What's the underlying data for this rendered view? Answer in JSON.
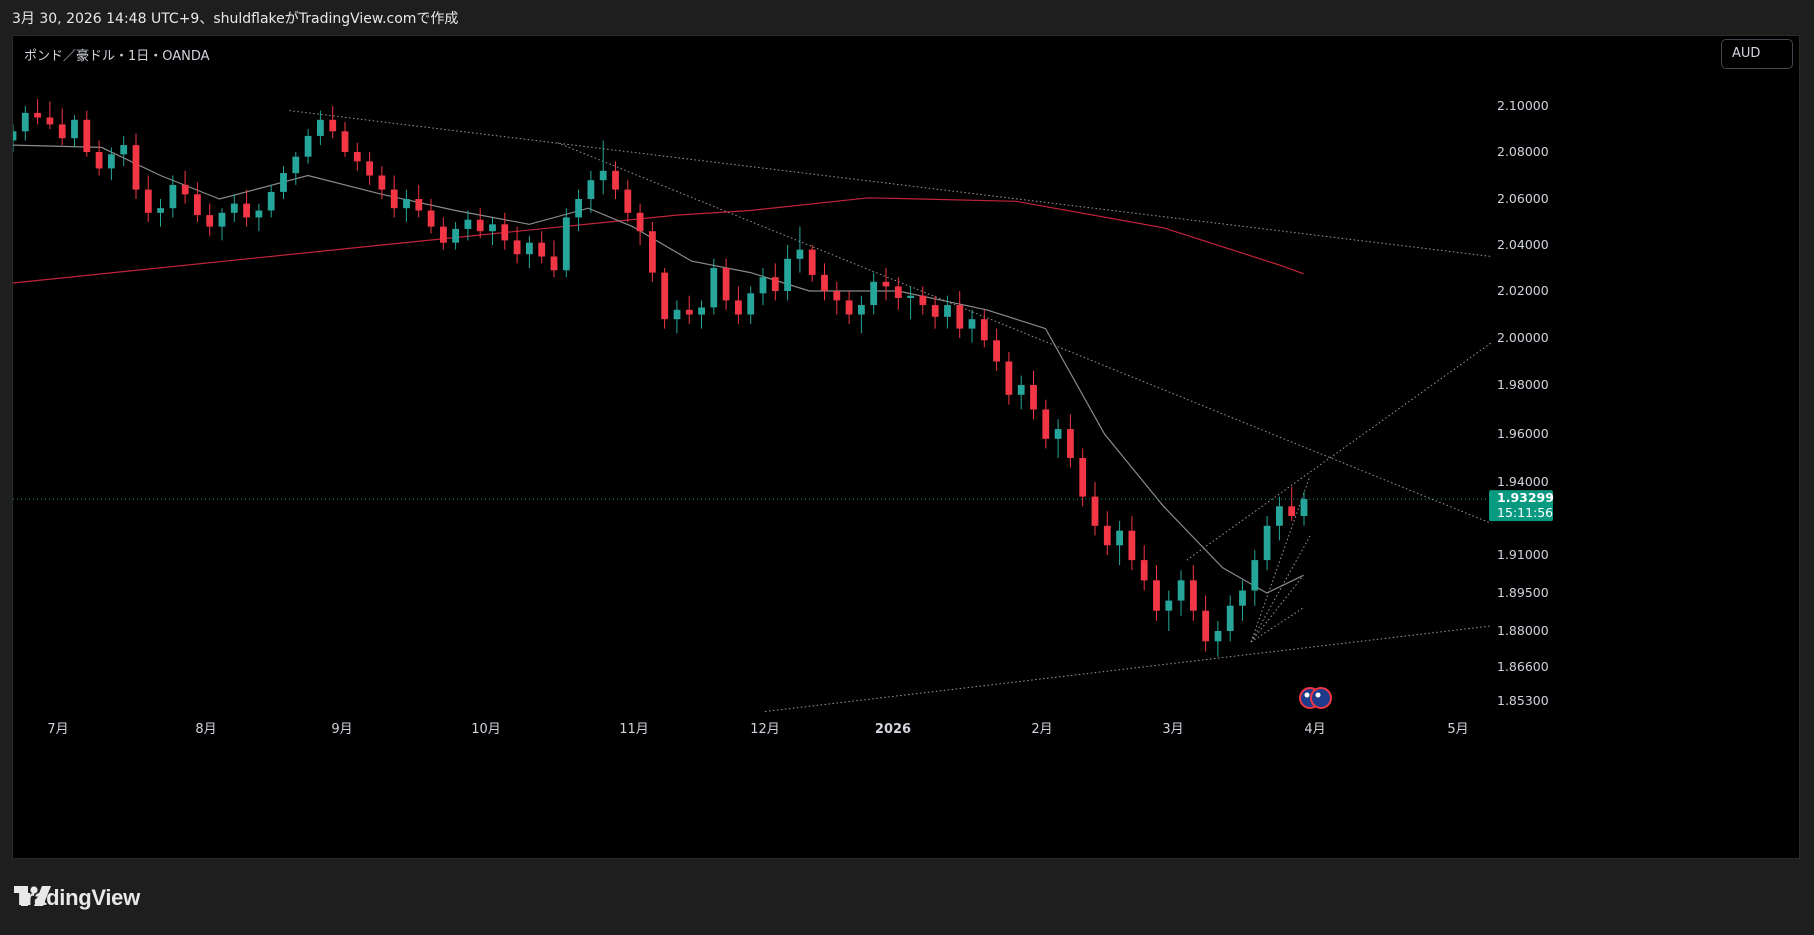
{
  "header": {
    "caption": "3月 30, 2026 14:48 UTC+9、shuldflakeがTradingView.comで作成"
  },
  "chart": {
    "symbol_label": "ポンド／豪ドル・1日・OANDA",
    "currency": "AUD",
    "last_price": "1.93299",
    "countdown": "15:11:56"
  },
  "footer": {
    "brand": "TradingView"
  },
  "colors": {
    "up": "#26a69a",
    "down": "#f23645",
    "ma_long": "#c2243a",
    "ma_short": "#8a8a8a",
    "last_price": "#089981",
    "trend": "#9a9a9a"
  },
  "icons": {
    "brand_logo": "tradingview-logo-icon",
    "event_flags": "australia-flag-icon"
  },
  "chart_data": {
    "type": "candlestick",
    "title": "ポンド／豪ドル・1日・OANDA",
    "y_axis": {
      "ticks": [
        2.1,
        2.08,
        2.06,
        2.04,
        2.02,
        2.0,
        1.98,
        1.96,
        1.94,
        1.91,
        1.895,
        1.88,
        1.866,
        1.853
      ],
      "tick_labels": [
        "2.10000",
        "2.08000",
        "2.06000",
        "2.04000",
        "2.02000",
        "2.00000",
        "1.98000",
        "1.96000",
        "1.94000",
        "1.91000",
        "1.89500",
        "1.88000",
        "1.86600",
        "1.85300"
      ]
    },
    "x_axis": {
      "ticks": [
        "2025-07-01",
        "2025-08-01",
        "2025-09-01",
        "2025-10-01",
        "2025-11-01",
        "2025-12-01",
        "2026-01-01",
        "2026-02-01",
        "2026-03-01",
        "2026-04-01",
        "2026-05-01"
      ],
      "tick_labels": [
        "7月",
        "8月",
        "9月",
        "10月",
        "11月",
        "12月",
        "2026",
        "2月",
        "3月",
        "4月",
        "5月"
      ]
    },
    "candles": [
      [
        2.085,
        2.092,
        2.08,
        2.089
      ],
      [
        2.089,
        2.1,
        2.085,
        2.097
      ],
      [
        2.097,
        2.103,
        2.092,
        2.095
      ],
      [
        2.095,
        2.102,
        2.09,
        2.092
      ],
      [
        2.092,
        2.099,
        2.083,
        2.086
      ],
      [
        2.086,
        2.096,
        2.082,
        2.094
      ],
      [
        2.094,
        2.098,
        2.078,
        2.08
      ],
      [
        2.08,
        2.085,
        2.07,
        2.073
      ],
      [
        2.073,
        2.082,
        2.068,
        2.079
      ],
      [
        2.079,
        2.087,
        2.074,
        2.083
      ],
      [
        2.083,
        2.088,
        2.06,
        2.064
      ],
      [
        2.064,
        2.07,
        2.05,
        2.054
      ],
      [
        2.054,
        2.06,
        2.048,
        2.056
      ],
      [
        2.056,
        2.07,
        2.052,
        2.066
      ],
      [
        2.066,
        2.072,
        2.058,
        2.062
      ],
      [
        2.062,
        2.067,
        2.05,
        2.053
      ],
      [
        2.053,
        2.058,
        2.044,
        2.048
      ],
      [
        2.048,
        2.056,
        2.042,
        2.054
      ],
      [
        2.054,
        2.062,
        2.05,
        2.058
      ],
      [
        2.058,
        2.064,
        2.048,
        2.052
      ],
      [
        2.052,
        2.058,
        2.046,
        2.055
      ],
      [
        2.055,
        2.066,
        2.052,
        2.063
      ],
      [
        2.063,
        2.074,
        2.06,
        2.071
      ],
      [
        2.071,
        2.08,
        2.066,
        2.078
      ],
      [
        2.078,
        2.09,
        2.075,
        2.087
      ],
      [
        2.087,
        2.098,
        2.083,
        2.094
      ],
      [
        2.094,
        2.1,
        2.086,
        2.089
      ],
      [
        2.089,
        2.093,
        2.078,
        2.08
      ],
      [
        2.08,
        2.084,
        2.072,
        2.076
      ],
      [
        2.076,
        2.08,
        2.066,
        2.07
      ],
      [
        2.07,
        2.074,
        2.06,
        2.064
      ],
      [
        2.064,
        2.07,
        2.052,
        2.056
      ],
      [
        2.056,
        2.064,
        2.05,
        2.06
      ],
      [
        2.06,
        2.066,
        2.052,
        2.055
      ],
      [
        2.055,
        2.06,
        2.045,
        2.048
      ],
      [
        2.048,
        2.052,
        2.038,
        2.041
      ],
      [
        2.041,
        2.05,
        2.038,
        2.047
      ],
      [
        2.047,
        2.055,
        2.042,
        2.051
      ],
      [
        2.051,
        2.056,
        2.043,
        2.046
      ],
      [
        2.046,
        2.052,
        2.04,
        2.049
      ],
      [
        2.049,
        2.054,
        2.038,
        2.042
      ],
      [
        2.042,
        2.048,
        2.032,
        2.036
      ],
      [
        2.036,
        2.044,
        2.03,
        2.041
      ],
      [
        2.041,
        2.046,
        2.032,
        2.035
      ],
      [
        2.035,
        2.042,
        2.026,
        2.029
      ],
      [
        2.029,
        2.056,
        2.026,
        2.052
      ],
      [
        2.052,
        2.064,
        2.046,
        2.06
      ],
      [
        2.06,
        2.072,
        2.054,
        2.068
      ],
      [
        2.068,
        2.085,
        2.062,
        2.072
      ],
      [
        2.072,
        2.076,
        2.06,
        2.064
      ],
      [
        2.064,
        2.068,
        2.05,
        2.054
      ],
      [
        2.054,
        2.058,
        2.04,
        2.046
      ],
      [
        2.046,
        2.05,
        2.024,
        2.028
      ],
      [
        2.028,
        2.03,
        2.004,
        2.008
      ],
      [
        2.008,
        2.016,
        2.002,
        2.012
      ],
      [
        2.012,
        2.018,
        2.006,
        2.01
      ],
      [
        2.01,
        2.016,
        2.004,
        2.013
      ],
      [
        2.013,
        2.034,
        2.01,
        2.03
      ],
      [
        2.03,
        2.034,
        2.012,
        2.016
      ],
      [
        2.016,
        2.022,
        2.006,
        2.01
      ],
      [
        2.01,
        2.022,
        2.006,
        2.019
      ],
      [
        2.019,
        2.03,
        2.014,
        2.026
      ],
      [
        2.026,
        2.032,
        2.016,
        2.02
      ],
      [
        2.02,
        2.04,
        2.016,
        2.034
      ],
      [
        2.034,
        2.048,
        2.028,
        2.038
      ],
      [
        2.038,
        2.04,
        2.024,
        2.027
      ],
      [
        2.027,
        2.032,
        2.016,
        2.02
      ],
      [
        2.02,
        2.024,
        2.01,
        2.016
      ],
      [
        2.016,
        2.02,
        2.006,
        2.01
      ],
      [
        2.01,
        2.018,
        2.002,
        2.014
      ],
      [
        2.014,
        2.028,
        2.01,
        2.024
      ],
      [
        2.024,
        2.03,
        2.016,
        2.022
      ],
      [
        2.022,
        2.026,
        2.012,
        2.017
      ],
      [
        2.017,
        2.022,
        2.008,
        2.018
      ],
      [
        2.018,
        2.022,
        2.01,
        2.014
      ],
      [
        2.014,
        2.018,
        2.004,
        2.009
      ],
      [
        2.009,
        2.018,
        2.004,
        2.014
      ],
      [
        2.014,
        2.02,
        2.0,
        2.004
      ],
      [
        2.004,
        2.012,
        1.998,
        2.008
      ],
      [
        2.008,
        2.012,
        1.996,
        1.999
      ],
      [
        1.999,
        2.004,
        1.986,
        1.99
      ],
      [
        1.99,
        1.994,
        1.972,
        1.976
      ],
      [
        1.976,
        1.984,
        1.97,
        1.98
      ],
      [
        1.98,
        1.986,
        1.966,
        1.97
      ],
      [
        1.97,
        1.974,
        1.954,
        1.958
      ],
      [
        1.958,
        1.966,
        1.95,
        1.962
      ],
      [
        1.962,
        1.968,
        1.946,
        1.95
      ],
      [
        1.95,
        1.954,
        1.93,
        1.934
      ],
      [
        1.934,
        1.94,
        1.918,
        1.922
      ],
      [
        1.922,
        1.928,
        1.91,
        1.914
      ],
      [
        1.914,
        1.924,
        1.906,
        1.92
      ],
      [
        1.92,
        1.926,
        1.904,
        1.908
      ],
      [
        1.908,
        1.914,
        1.896,
        1.9
      ],
      [
        1.9,
        1.906,
        1.884,
        1.888
      ],
      [
        1.888,
        1.896,
        1.88,
        1.892
      ],
      [
        1.892,
        1.904,
        1.886,
        1.9
      ],
      [
        1.9,
        1.906,
        1.884,
        1.888
      ],
      [
        1.888,
        1.894,
        1.872,
        1.876
      ],
      [
        1.876,
        1.884,
        1.87,
        1.88
      ],
      [
        1.88,
        1.894,
        1.876,
        1.89
      ],
      [
        1.89,
        1.9,
        1.884,
        1.896
      ],
      [
        1.896,
        1.912,
        1.89,
        1.908
      ],
      [
        1.908,
        1.926,
        1.904,
        1.922
      ],
      [
        1.922,
        1.934,
        1.916,
        1.93
      ],
      [
        1.93,
        1.938,
        1.924,
        1.926
      ],
      [
        1.926,
        1.936,
        1.922,
        1.933
      ]
    ],
    "moving_averages": [
      {
        "name": "",
        "color": "#c2243a",
        "points": [
          [
            0,
            2.0235
          ],
          [
            0.25,
            2.04
          ],
          [
            0.45,
            2.053
          ],
          [
            0.5,
            2.055
          ],
          [
            0.58,
            2.0605
          ],
          [
            0.68,
            2.059
          ],
          [
            0.78,
            2.0475
          ],
          [
            0.86,
            2.031
          ],
          [
            0.875,
            2.0275
          ]
        ]
      },
      {
        "name": "",
        "color": "#8a8a8a",
        "points": [
          [
            0,
            2.083
          ],
          [
            0.06,
            2.082
          ],
          [
            0.1,
            2.07
          ],
          [
            0.14,
            2.06
          ],
          [
            0.2,
            2.07
          ],
          [
            0.25,
            2.062
          ],
          [
            0.3,
            2.055
          ],
          [
            0.35,
            2.049
          ],
          [
            0.39,
            2.056
          ],
          [
            0.42,
            2.048
          ],
          [
            0.46,
            2.033
          ],
          [
            0.5,
            2.028
          ],
          [
            0.54,
            2.02
          ],
          [
            0.6,
            2.02
          ],
          [
            0.66,
            2.012
          ],
          [
            0.7,
            2.004
          ],
          [
            0.74,
            1.96
          ],
          [
            0.78,
            1.93
          ],
          [
            0.82,
            1.905
          ],
          [
            0.85,
            1.895
          ],
          [
            0.875,
            1.902
          ]
        ]
      }
    ],
    "trend_lines": [
      {
        "from": [
          "2025-08-20",
          2.098
        ],
        "to": [
          "2026-05-08",
          2.035
        ]
      },
      {
        "from": [
          "2025-10-16",
          2.084
        ],
        "to": [
          "2026-05-08",
          1.923
        ]
      },
      {
        "from": [
          "2025-12-01",
          1.849
        ],
        "to": [
          "2026-05-08",
          1.882
        ]
      },
      {
        "from": [
          "2026-03-04",
          1.908
        ],
        "to": [
          "2026-05-08",
          1.998
        ]
      }
    ]
  }
}
